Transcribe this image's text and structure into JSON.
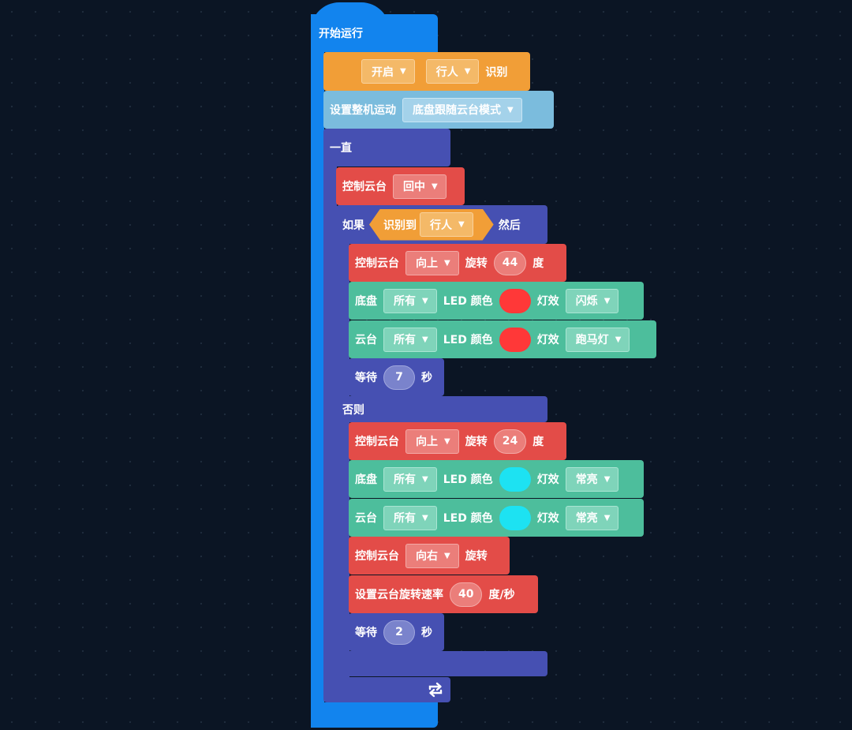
{
  "event": {
    "title": "开始运行"
  },
  "vision": {
    "toggle": "开启",
    "target": "行人",
    "suffix": "识别"
  },
  "chassis_mode": {
    "label": "设置整机运动",
    "mode": "底盘跟随云台模式"
  },
  "forever": {
    "label": "一直",
    "loop_icon": "repeat-icon"
  },
  "gimbal_center": {
    "label": "控制云台",
    "option": "回中"
  },
  "if_block": {
    "label": "如果",
    "condition": {
      "label": "识别到",
      "target": "行人"
    },
    "then_label": "然后",
    "else_label": "否则"
  },
  "then_branch": {
    "gimbal_rotate": {
      "label": "控制云台",
      "direction": "向上",
      "rotate_label": "旋转",
      "degrees": "44",
      "unit": "度"
    },
    "chassis_led": {
      "label": "底盘",
      "target": "所有",
      "led_label": "LED 颜色",
      "color": "#ff3838",
      "effect_label": "灯效",
      "effect": "闪烁"
    },
    "gimbal_led": {
      "label": "云台",
      "target": "所有",
      "led_label": "LED 颜色",
      "color": "#ff3838",
      "effect_label": "灯效",
      "effect": "跑马灯"
    },
    "wait": {
      "label": "等待",
      "seconds": "7",
      "unit": "秒"
    }
  },
  "else_branch": {
    "gimbal_rotate": {
      "label": "控制云台",
      "direction": "向上",
      "rotate_label": "旋转",
      "degrees": "24",
      "unit": "度"
    },
    "chassis_led": {
      "label": "底盘",
      "target": "所有",
      "led_label": "LED 颜色",
      "color": "#1de2f2",
      "effect_label": "灯效",
      "effect": "常亮"
    },
    "gimbal_led": {
      "label": "云台",
      "target": "所有",
      "led_label": "LED 颜色",
      "color": "#1de2f2",
      "effect_label": "灯效",
      "effect": "常亮"
    },
    "gimbal_continuous": {
      "label": "控制云台",
      "direction": "向右",
      "rotate_label": "旋转"
    },
    "set_speed": {
      "label": "设置云台旋转速率",
      "speed": "40",
      "unit": "度/秒"
    },
    "wait": {
      "label": "等待",
      "seconds": "2",
      "unit": "秒"
    }
  }
}
